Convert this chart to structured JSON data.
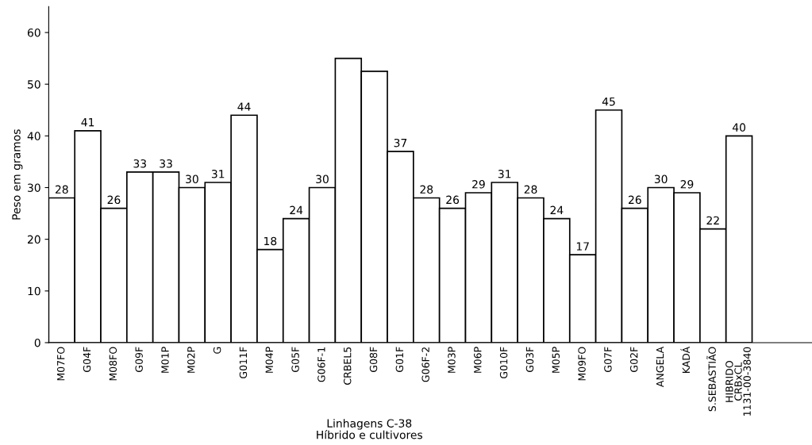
{
  "chart_data": {
    "type": "bar",
    "categories": [
      "M07FO",
      "G04F",
      "M08FO",
      "G09F",
      "M01P",
      "M02P",
      "G",
      "G011F",
      "M04P",
      "G05F",
      "G06F-1",
      "CRBEL5",
      "G08F",
      "G01F",
      "G06F-2",
      "M03P",
      "M06P",
      "G010F",
      "G03F",
      "M05P",
      "M09FO",
      "G07F",
      "G02F",
      "ANGELA",
      "KADÁ",
      "S.SEBASTIÃO",
      "HIBRIDO\nCRBxCL\n1131-00-3840"
    ],
    "values": [
      28,
      41,
      26,
      33,
      33,
      30,
      31,
      44,
      18,
      24,
      30,
      55,
      52.5,
      37,
      28,
      26,
      29,
      31,
      28,
      24,
      17,
      45,
      26,
      30,
      29,
      22,
      40
    ],
    "value_labels": [
      "28",
      "41",
      "26",
      "33",
      "33",
      "30",
      "31",
      "44",
      "18",
      "24",
      "30",
      null,
      null,
      "37",
      "28",
      "26",
      "29",
      "31",
      "28",
      "24",
      "17",
      "45",
      "26",
      "30",
      "29",
      "22",
      "40"
    ],
    "color": "#ffffff",
    "xlabel": "Linhagens C-38\nHíbrido e cultivores",
    "ylabel": "Peso em gramos",
    "ylim": [
      0,
      65
    ],
    "yticks": [
      0,
      10,
      20,
      30,
      40,
      50,
      60
    ],
    "grid": false,
    "legend": false
  }
}
